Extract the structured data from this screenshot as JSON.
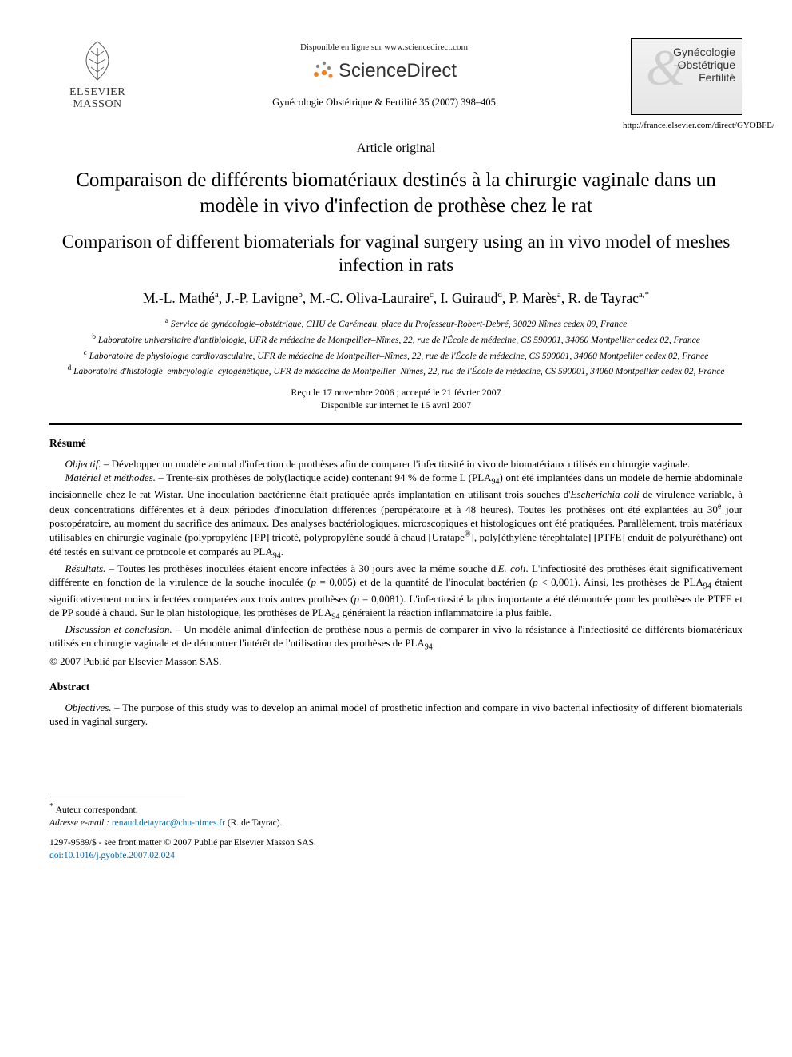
{
  "header": {
    "publisher_line1": "ELSEVIER",
    "publisher_line2": "MASSON",
    "available_text": "Disponible en ligne sur www.sciencedirect.com",
    "sd_text": "ScienceDirect",
    "citation": "Gynécologie Obstétrique & Fertilité 35 (2007) 398–405",
    "journal_name_1": "Gynécologie",
    "journal_name_2": "Obstétrique",
    "journal_name_3": "Fertilité",
    "journal_url": "http://france.elsevier.com/direct/GYOBFE/"
  },
  "article_type": "Article original",
  "title_fr": "Comparaison de différents biomatériaux destinés à la chirurgie vaginale dans un modèle in vivo d'infection de prothèse chez le rat",
  "title_en": "Comparison of different biomaterials for vaginal surgery using an in vivo model of meshes infection in rats",
  "authors_html": "M.-L. Mathé<sup>a</sup>, J.-P. Lavigne<sup>b</sup>, M.-C. Oliva-Lauraire<sup>c</sup>, I. Guiraud<sup>d</sup>, P. Marès<sup>a</sup>, R. de Tayrac<sup>a,*</sup>",
  "affiliations": {
    "a": "Service de gynécologie–obstétrique, CHU de Carémeau, place du Professeur-Robert-Debré, 30029 Nîmes cedex 09, France",
    "b": "Laboratoire universitaire d'antibiologie, UFR de médecine de Montpellier–Nîmes, 22, rue de l'École de médecine, CS 590001, 34060 Montpellier cedex 02, France",
    "c": "Laboratoire de physiologie cardiovasculaire, UFR de médecine de Montpellier–Nîmes, 22, rue de l'École de médecine, CS 590001, 34060 Montpellier cedex 02, France",
    "d": "Laboratoire d'histologie–embryologie–cytogénétique, UFR de médecine de Montpellier–Nîmes, 22, rue de l'École de médecine, CS 590001, 34060 Montpellier cedex 02, France"
  },
  "dates": {
    "received_accepted": "Reçu le 17 novembre 2006 ; accepté le 21 février 2007",
    "online": "Disponible sur internet le 16 avril 2007"
  },
  "resume": {
    "heading": "Résumé",
    "objectif_lead": "Objectif.",
    "objectif": " – Développer un modèle animal d'infection de prothèses afin de comparer l'infectiosité in vivo de biomatériaux utilisés en chirurgie vaginale.",
    "materiel_lead": "Matériel et méthodes.",
    "materiel_html": " – Trente-six prothèses de poly(lactique acide) contenant 94 % de forme L (PLA<sub class=\"sub94\">94</sub>) ont été implantées dans un modèle de hernie abdominale incisionnelle chez le rat Wistar. Une inoculation bactérienne était pratiquée après implantation en utilisant trois souches d'<i>Escherichia coli</i> de virulence variable, à deux concentrations différentes et à deux périodes d'inoculation différentes (peropératoire et à 48 heures). Toutes les prothèses ont été explantées au 30<sup>e</sup> jour postopératoire, au moment du sacrifice des animaux. Des analyses bactériologiques, microscopiques et histologiques ont été pratiquées. Parallèlement, trois matériaux utilisables en chirurgie vaginale (polypropylène [PP] tricoté, polypropylène soudé à chaud [Uratape<sup>®</sup>], poly[éthylène térephtalate] [PTFE] enduit de polyuréthane) ont été testés en suivant ce protocole et comparés au PLA<sub class=\"sub94\">94</sub>.",
    "resultats_lead": "Résultats.",
    "resultats_html": " – Toutes les prothèses inoculées étaient encore infectées à 30 jours avec la même souche d'<i>E. coli</i>. L'infectiosité des prothèses était significativement différente en fonction de la virulence de la souche inoculée (<i>p</i> = 0,005) et de la quantité de l'inoculat bactérien (<i>p</i> < 0,001). Ainsi, les prothèses de PLA<sub class=\"sub94\">94</sub> étaient significativement moins infectées comparées aux trois autres prothèses (<i>p</i> = 0,0081). L'infectiosité la plus importante a été démontrée pour les prothèses de PTFE et de PP soudé à chaud. Sur le plan histologique, les prothèses de PLA<sub class=\"sub94\">94</sub> généraient la réaction inflammatoire la plus faible.",
    "discussion_lead": "Discussion et conclusion.",
    "discussion_html": " – Un modèle animal d'infection de prothèse nous a permis de comparer in vivo la résistance à l'infectiosité de différents biomatériaux utilisés en chirurgie vaginale et de démontrer l'intérêt de l'utilisation des prothèses de PLA<sub class=\"sub94\">94</sub>.",
    "copyright": "© 2007 Publié par Elsevier Masson SAS."
  },
  "abstract": {
    "heading": "Abstract",
    "objectives_lead": "Objectives.",
    "objectives": " – The purpose of this study was to develop an animal model of prosthetic infection and compare in vivo bacterial infectiosity of different biomaterials used in vaginal surgery."
  },
  "footnote": {
    "corr": "Auteur correspondant.",
    "email_lead": "Adresse e-mail :",
    "email": "renaud.detayrac@chu-nimes.fr",
    "email_tail": " (R. de Tayrac)."
  },
  "front_matter": {
    "line1": "1297-9589/$ - see front matter © 2007 Publié par Elsevier Masson SAS.",
    "doi": "doi:10.1016/j.gyobfe.2007.02.024"
  },
  "colors": {
    "link": "#0066aa",
    "text": "#000000",
    "grey": "#cfcfcf",
    "sd_orange": "#f58220",
    "sd_grey": "#888888"
  }
}
